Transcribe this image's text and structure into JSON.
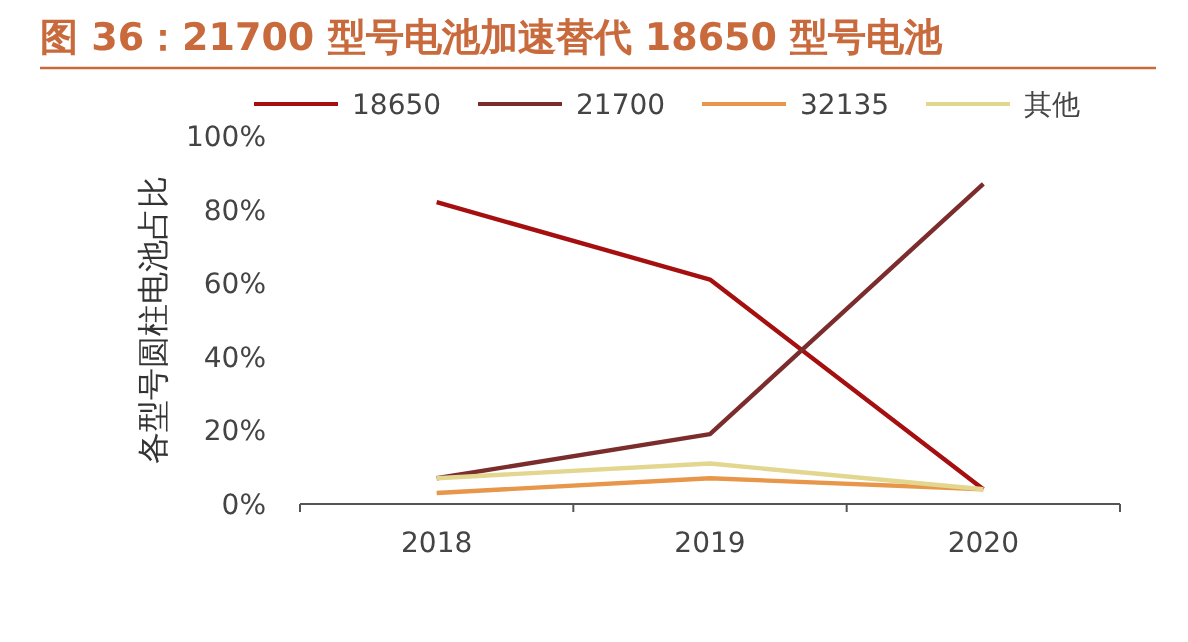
{
  "chart_data": {
    "type": "line",
    "title": "图 36：21700 型号电池加速替代 18650 型号电池",
    "ylabel": "各型号圆柱电池占比",
    "categories": [
      "2018",
      "2019",
      "2020"
    ],
    "series": [
      {
        "name": "18650",
        "color": "#a50f0f",
        "values": [
          82,
          61,
          4
        ]
      },
      {
        "name": "21700",
        "color": "#7b2c2c",
        "values": [
          7,
          19,
          87
        ]
      },
      {
        "name": "32135",
        "color": "#e8964a",
        "values": [
          3,
          7,
          4
        ]
      },
      {
        "name": "其他",
        "color": "#e3d68e",
        "values": [
          7,
          11,
          4
        ]
      }
    ],
    "ylim": [
      0,
      100
    ],
    "yticks": [
      {
        "value": 0,
        "label": "0%"
      },
      {
        "value": 20,
        "label": "20%"
      },
      {
        "value": 40,
        "label": "40%"
      },
      {
        "value": 60,
        "label": "60%"
      },
      {
        "value": 80,
        "label": "80%"
      },
      {
        "value": 100,
        "label": "100%"
      }
    ],
    "legend": "top",
    "marker": "none",
    "line_style": "solid",
    "grid": false
  }
}
